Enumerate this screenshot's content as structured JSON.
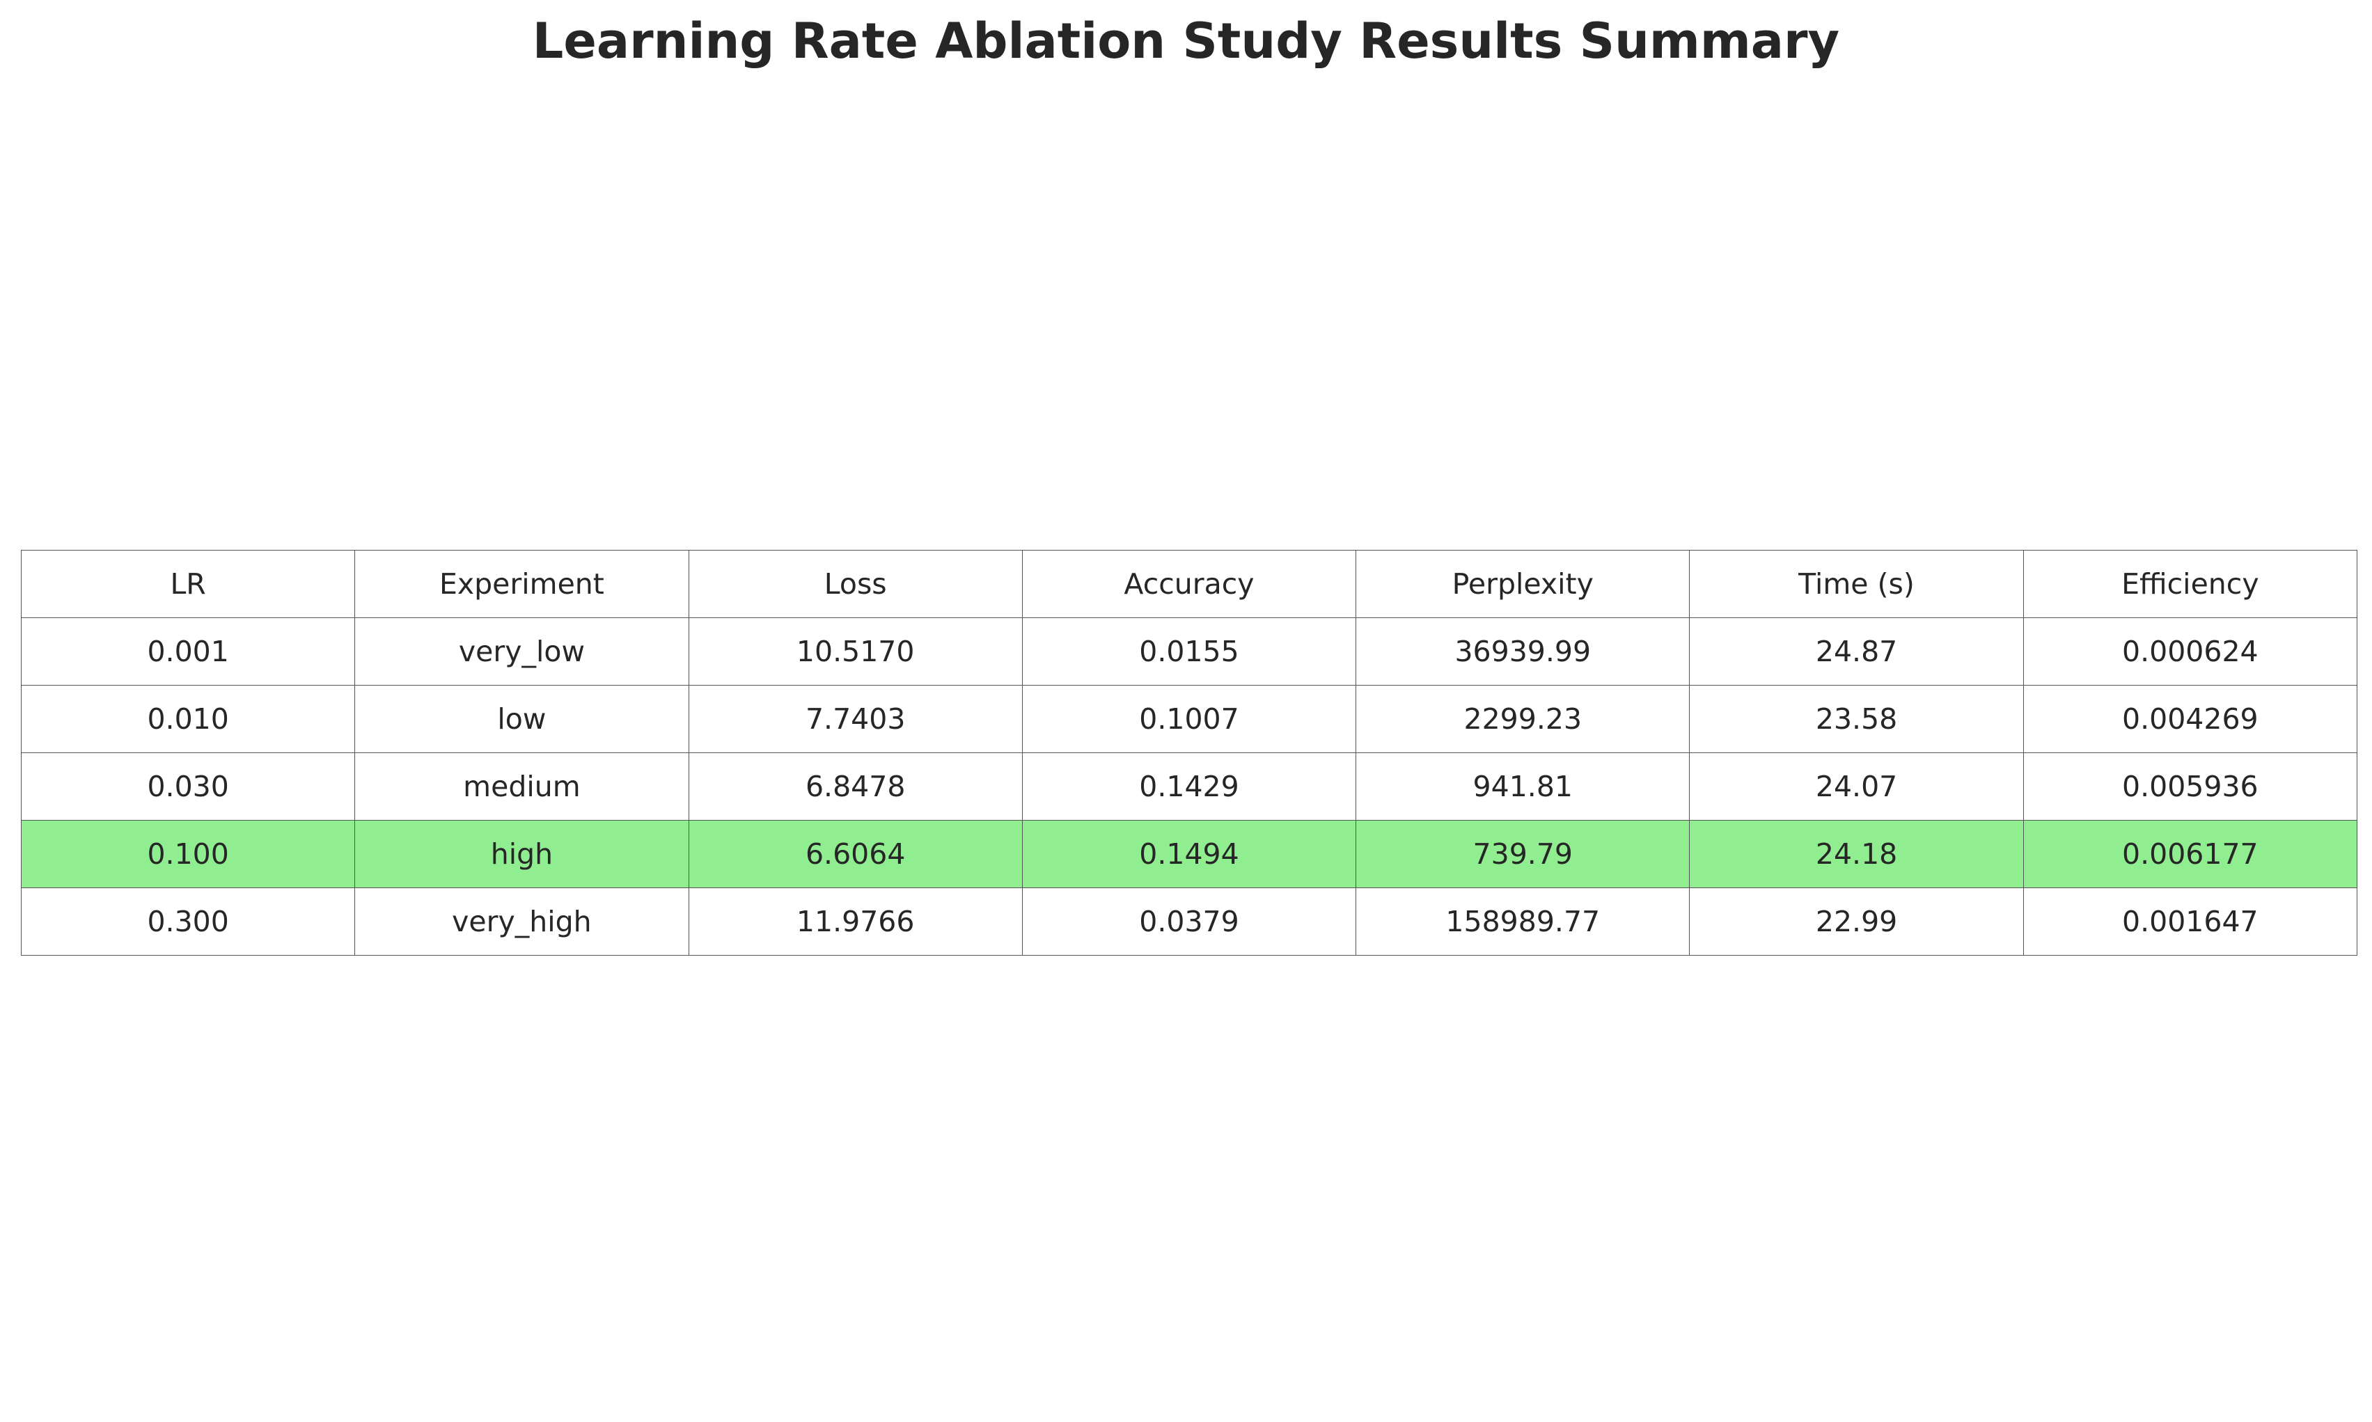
{
  "chart_data": {
    "type": "table",
    "title": "Learning Rate Ablation Study Results Summary",
    "columns": [
      "LR",
      "Experiment",
      "Loss",
      "Accuracy",
      "Perplexity",
      "Time (s)",
      "Efficiency"
    ],
    "rows": [
      [
        "0.001",
        "very_low",
        "10.5170",
        "0.0155",
        "36939.99",
        "24.87",
        "0.000624"
      ],
      [
        "0.010",
        "low",
        "7.7403",
        "0.1007",
        "2299.23",
        "23.58",
        "0.004269"
      ],
      [
        "0.030",
        "medium",
        "6.8478",
        "0.1429",
        "941.81",
        "24.07",
        "0.005936"
      ],
      [
        "0.100",
        "high",
        "6.6064",
        "0.1494",
        "739.79",
        "24.18",
        "0.006177"
      ],
      [
        "0.300",
        "very_high",
        "11.9766",
        "0.0379",
        "158989.77",
        "22.99",
        "0.001647"
      ]
    ],
    "highlight_row_index": 3,
    "highlight_color": "#90ee90",
    "border_color": "#555555",
    "text_color": "#262626"
  }
}
